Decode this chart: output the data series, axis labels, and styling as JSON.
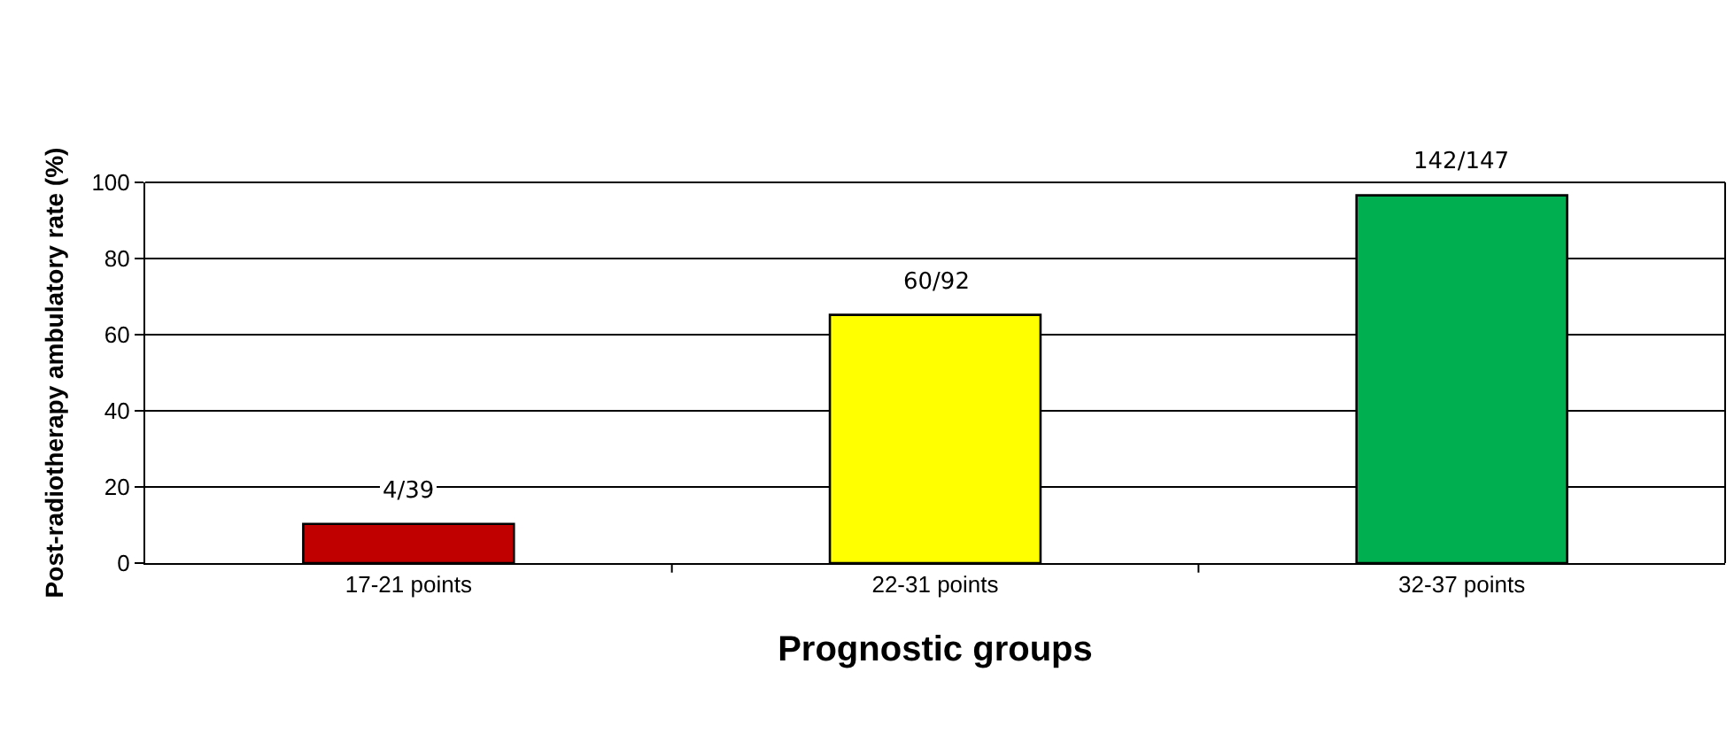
{
  "chart_data": {
    "type": "bar",
    "categories": [
      "17-21 points",
      "22-31 points",
      "32-37 points"
    ],
    "values": [
      10.3,
      65.2,
      96.6
    ],
    "colors": [
      "#c00000",
      "#ffff00",
      "#00b050"
    ],
    "value_labels": [
      "4/39",
      "60/92",
      "142/147"
    ],
    "xlabel": "Prognostic groups",
    "ylabel": "Post-radiotherapy ambulatory rate (%)",
    "ylim": [
      0,
      100
    ],
    "yticks": [
      0,
      20,
      40,
      60,
      80,
      100
    ],
    "grid": "y"
  }
}
